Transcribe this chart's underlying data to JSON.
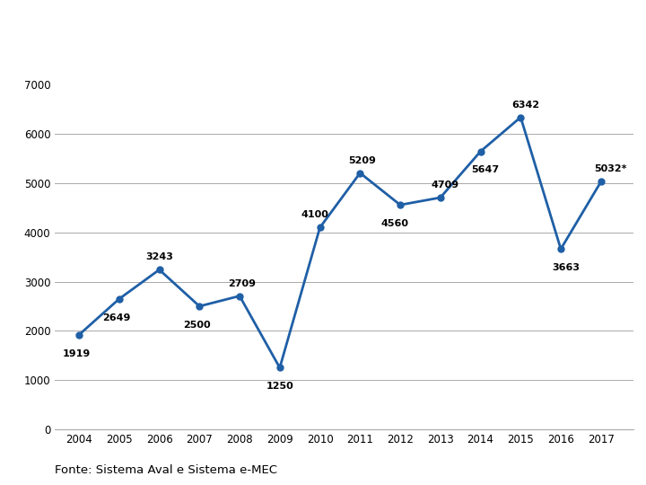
{
  "years": [
    2004,
    2005,
    2006,
    2007,
    2008,
    2009,
    2010,
    2011,
    2012,
    2013,
    2014,
    2015,
    2016,
    2017
  ],
  "values": [
    1919,
    2649,
    3243,
    2500,
    2709,
    1250,
    4100,
    5209,
    4560,
    4709,
    5647,
    6342,
    3663,
    5032
  ],
  "labels": [
    "1919",
    "2649",
    "3243",
    "2500",
    "2709",
    "1250",
    "4100",
    "5209",
    "4560",
    "4709",
    "5647",
    "6342",
    "3663",
    "5032*"
  ],
  "footer": "Fonte: Sistema Aval e Sistema e-MEC",
  "line_color": "#1F5FA6",
  "marker_color": "#1F5FA6",
  "header_bg": "#1E3A5F",
  "header_text": "#FFFFFF",
  "ylim": [
    0,
    7000
  ],
  "yticks": [
    0,
    1000,
    2000,
    3000,
    4000,
    5000,
    6000,
    7000
  ],
  "grid_color": "#AAAAAA",
  "title_fontsize": 13.5,
  "subtitle_fontsize": 9.5,
  "label_fontsize": 8.0,
  "footer_fontsize": 9.5,
  "tick_fontsize": 8.5
}
